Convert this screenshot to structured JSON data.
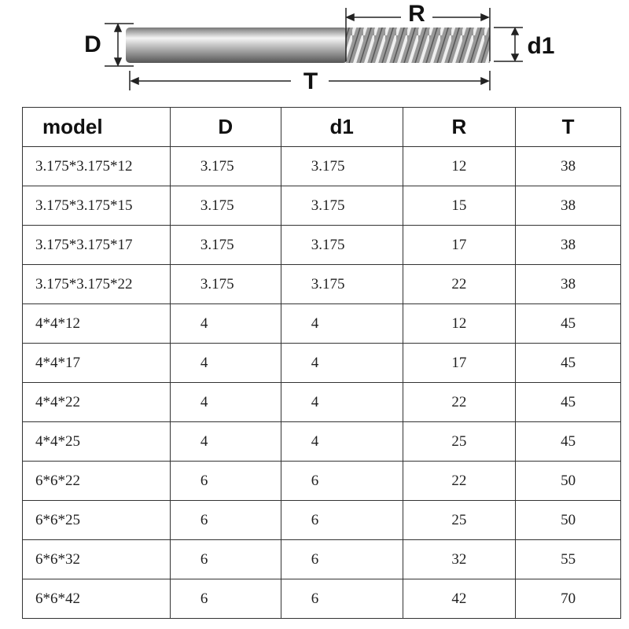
{
  "diagram": {
    "labels": {
      "D": "D",
      "R": "R",
      "d1": "d1",
      "T": "T"
    }
  },
  "table": {
    "header": [
      "model",
      "D",
      "d1",
      "R",
      "T"
    ],
    "rows": [
      [
        "3.175*3.175*12",
        "3.175",
        "3.175",
        "12",
        "38"
      ],
      [
        "3.175*3.175*15",
        "3.175",
        "3.175",
        "15",
        "38"
      ],
      [
        "3.175*3.175*17",
        "3.175",
        "3.175",
        "17",
        "38"
      ],
      [
        "3.175*3.175*22",
        "3.175",
        "3.175",
        "22",
        "38"
      ],
      [
        "4*4*12",
        "4",
        "4",
        "12",
        "45"
      ],
      [
        "4*4*17",
        "4",
        "4",
        "17",
        "45"
      ],
      [
        "4*4*22",
        "4",
        "4",
        "22",
        "45"
      ],
      [
        "4*4*25",
        "4",
        "4",
        "25",
        "45"
      ],
      [
        "6*6*22",
        "6",
        "6",
        "22",
        "50"
      ],
      [
        "6*6*25",
        "6",
        "6",
        "25",
        "50"
      ],
      [
        "6*6*32",
        "6",
        "6",
        "32",
        "55"
      ],
      [
        "6*6*42",
        "6",
        "6",
        "42",
        "70"
      ]
    ]
  }
}
